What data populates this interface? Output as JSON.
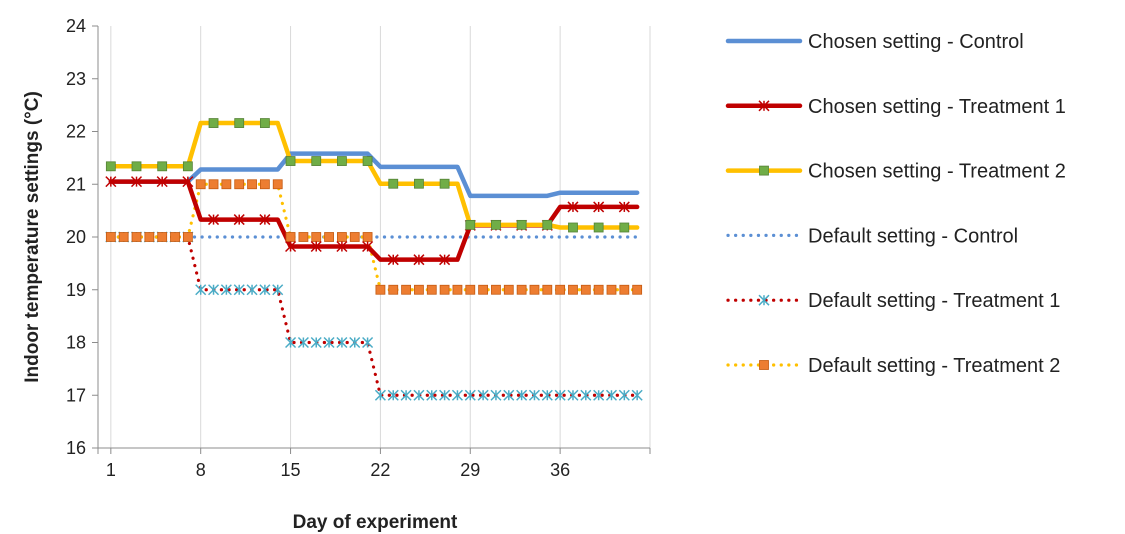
{
  "chart_data": {
    "type": "line",
    "title": "",
    "xlabel": "Day of experiment",
    "ylabel": "Indoor temperature settings (°C)",
    "x_ticks": [
      "1",
      "8",
      "15",
      "22",
      "29",
      "36"
    ],
    "y_ticks": [
      "16",
      "17",
      "18",
      "19",
      "20",
      "21",
      "22",
      "23",
      "24"
    ],
    "xlim": [
      0,
      43
    ],
    "ylim": [
      16,
      24
    ],
    "grid": {
      "vertical": true,
      "horizontal": false
    },
    "legend_position": "right",
    "x": [
      1,
      2,
      3,
      4,
      5,
      6,
      7,
      8,
      9,
      10,
      11,
      12,
      13,
      14,
      15,
      16,
      17,
      18,
      19,
      20,
      21,
      22,
      23,
      24,
      25,
      26,
      27,
      28,
      29,
      30,
      31,
      32,
      33,
      34,
      35,
      36,
      37,
      38,
      39,
      40,
      41,
      42
    ],
    "series": [
      {
        "name": "Chosen setting - Control",
        "color": "#5b8fd4",
        "style": "solid",
        "marker": "none",
        "values": [
          21.05,
          21.05,
          21.05,
          21.05,
          21.05,
          21.05,
          21.05,
          21.28,
          21.28,
          21.28,
          21.28,
          21.28,
          21.28,
          21.28,
          21.58,
          21.58,
          21.58,
          21.58,
          21.58,
          21.58,
          21.58,
          21.33,
          21.33,
          21.33,
          21.33,
          21.33,
          21.33,
          21.33,
          20.78,
          20.78,
          20.78,
          20.78,
          20.78,
          20.78,
          20.78,
          20.84,
          20.84,
          20.84,
          20.84,
          20.84,
          20.84,
          20.84
        ]
      },
      {
        "name": "Chosen setting - Treatment 1",
        "color": "#c00000",
        "style": "solid",
        "marker": "star",
        "values": [
          21.05,
          21.05,
          21.05,
          21.05,
          21.05,
          21.05,
          21.05,
          20.33,
          20.33,
          20.33,
          20.33,
          20.33,
          20.33,
          20.33,
          19.82,
          19.82,
          19.82,
          19.82,
          19.82,
          19.82,
          19.82,
          19.57,
          19.57,
          19.57,
          19.57,
          19.57,
          19.57,
          19.57,
          20.22,
          20.22,
          20.22,
          20.22,
          20.22,
          20.22,
          20.22,
          20.57,
          20.57,
          20.57,
          20.57,
          20.57,
          20.57,
          20.57
        ]
      },
      {
        "name": "Chosen setting - Treatment 2",
        "color": "#ffc000",
        "style": "solid",
        "marker": "square-green",
        "values": [
          21.34,
          21.34,
          21.34,
          21.34,
          21.34,
          21.34,
          21.34,
          22.16,
          22.16,
          22.16,
          22.16,
          22.16,
          22.16,
          22.16,
          21.44,
          21.44,
          21.44,
          21.44,
          21.44,
          21.44,
          21.44,
          21.01,
          21.01,
          21.01,
          21.01,
          21.01,
          21.01,
          21.01,
          20.23,
          20.23,
          20.23,
          20.23,
          20.23,
          20.23,
          20.23,
          20.18,
          20.18,
          20.18,
          20.18,
          20.18,
          20.18,
          20.18
        ]
      },
      {
        "name": "Default setting - Control",
        "color": "#5b8fd4",
        "style": "dotted",
        "marker": "none",
        "values": [
          20,
          20,
          20,
          20,
          20,
          20,
          20,
          20,
          20,
          20,
          20,
          20,
          20,
          20,
          20,
          20,
          20,
          20,
          20,
          20,
          20,
          20,
          20,
          20,
          20,
          20,
          20,
          20,
          20,
          20,
          20,
          20,
          20,
          20,
          20,
          20,
          20,
          20,
          20,
          20,
          20,
          20
        ]
      },
      {
        "name": "Default setting - Treatment 1",
        "color": "#c00000",
        "style": "dotted",
        "marker": "star-teal",
        "values": [
          20,
          20,
          20,
          20,
          20,
          20,
          20,
          19,
          19,
          19,
          19,
          19,
          19,
          19,
          18,
          18,
          18,
          18,
          18,
          18,
          18,
          17,
          17,
          17,
          17,
          17,
          17,
          17,
          17,
          17,
          17,
          17,
          17,
          17,
          17,
          17,
          17,
          17,
          17,
          17,
          17,
          17
        ]
      },
      {
        "name": "Default setting - Treatment 2",
        "color": "#ffc000",
        "style": "dotted",
        "marker": "square-orange",
        "values": [
          20,
          20,
          20,
          20,
          20,
          20,
          20,
          21,
          21,
          21,
          21,
          21,
          21,
          21,
          20,
          20,
          20,
          20,
          20,
          20,
          20,
          19,
          19,
          19,
          19,
          19,
          19,
          19,
          19,
          19,
          19,
          19,
          19,
          19,
          19,
          19,
          19,
          19,
          19,
          19,
          19,
          19
        ]
      }
    ]
  }
}
